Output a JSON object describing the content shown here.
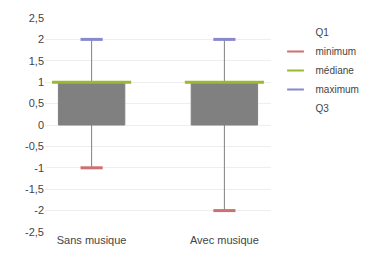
{
  "chart_data": {
    "type": "box",
    "categories": [
      "Sans musique",
      "Avec musique"
    ],
    "color": "#808080",
    "series": [
      {
        "name": "Q1",
        "values": [
          0,
          0
        ]
      },
      {
        "name": "minimum",
        "color": "#cc7070",
        "values": [
          -1,
          -2
        ]
      },
      {
        "name": "médiane",
        "color": "#9ab830",
        "values": [
          1,
          1
        ]
      },
      {
        "name": "maximum",
        "color": "#8888cc",
        "values": [
          2,
          2
        ]
      },
      {
        "name": "Q3",
        "values": [
          1,
          1
        ]
      }
    ],
    "ylim": [
      -2.5,
      2.5
    ],
    "yticks": [
      {
        "value": -2.5,
        "label": "-2,5"
      },
      -2,
      {
        "value": -1.5,
        "label": "-1,5"
      },
      -1,
      {
        "value": -0.5,
        "label": "-0,5"
      },
      0,
      {
        "value": 0.5,
        "label": "0,5"
      },
      1,
      {
        "value": 1.5,
        "label": "1,5"
      },
      2,
      {
        "value": 2.5,
        "label": "2,5"
      }
    ],
    "grid": true,
    "legend": "right"
  }
}
